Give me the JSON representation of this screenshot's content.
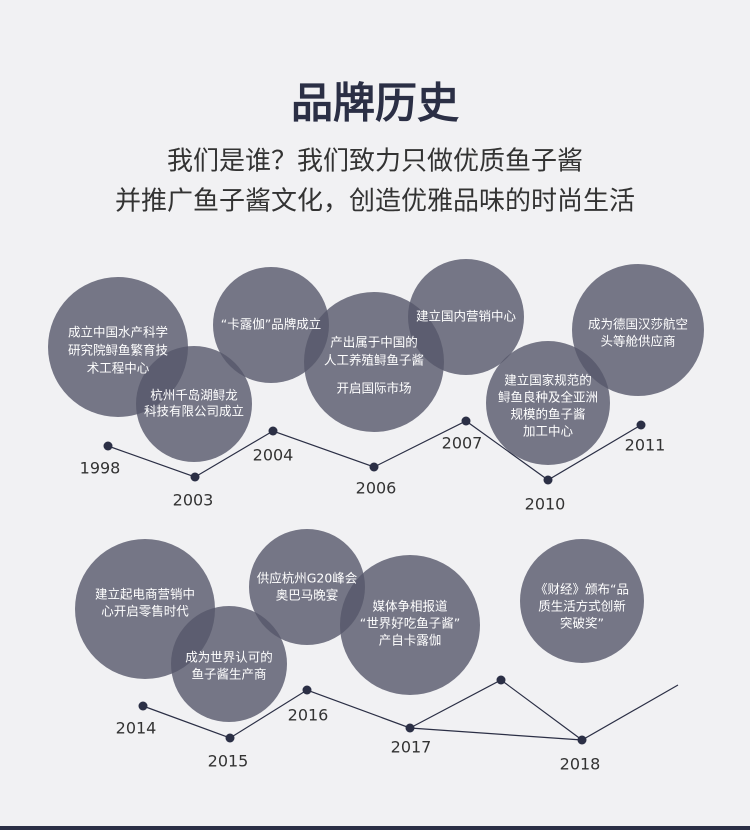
{
  "header": {
    "title": "品牌历史",
    "subtitle": [
      "我们是谁？我们致力只做优质鱼子酱",
      "并推广鱼子酱文化，创造优雅品味的时尚生活"
    ]
  },
  "timelines": [
    {
      "years": [
        "1998",
        "2003",
        "2004",
        "2006",
        "2007",
        "2010",
        "2011"
      ],
      "events": [
        {
          "lines": [
            "成立中国水产科学",
            "研究院鲟鱼繁育技",
            "术工程中心"
          ]
        },
        {
          "lines": [
            "杭州千岛湖鲟龙",
            "科技有限公司成立"
          ]
        },
        {
          "lines": [
            "“卡露伽”品牌成立"
          ]
        },
        {
          "lines": [
            "产出属于中国的",
            "人工养殖鲟鱼子酱",
            "开启国际市场"
          ]
        },
        {
          "lines": [
            "建立国内营销中心"
          ]
        },
        {
          "lines": [
            "建立国家规范的",
            "鲟鱼良种及全亚洲",
            "规模的鱼子酱",
            "加工中心"
          ]
        },
        {
          "lines": [
            "成为德国汉莎航空",
            "头等舱供应商"
          ]
        }
      ]
    },
    {
      "years": [
        "2014",
        "2015",
        "2016",
        "2017",
        "2018"
      ],
      "events": [
        {
          "lines": [
            "建立起电商营销中",
            "心开启零售时代"
          ]
        },
        {
          "lines": [
            "成为世界认可的",
            "鱼子酱生产商"
          ]
        },
        {
          "lines": [
            "供应杭州G20峰会",
            "奥巴马晚宴"
          ]
        },
        {
          "lines": [
            "媒体争相报道",
            "“世界好吃鱼子酱”",
            "产自卡露伽"
          ]
        },
        {
          "lines": [
            "《财经》颁布“品",
            "质生活方式创新",
            "突破奖”"
          ]
        }
      ]
    }
  ]
}
